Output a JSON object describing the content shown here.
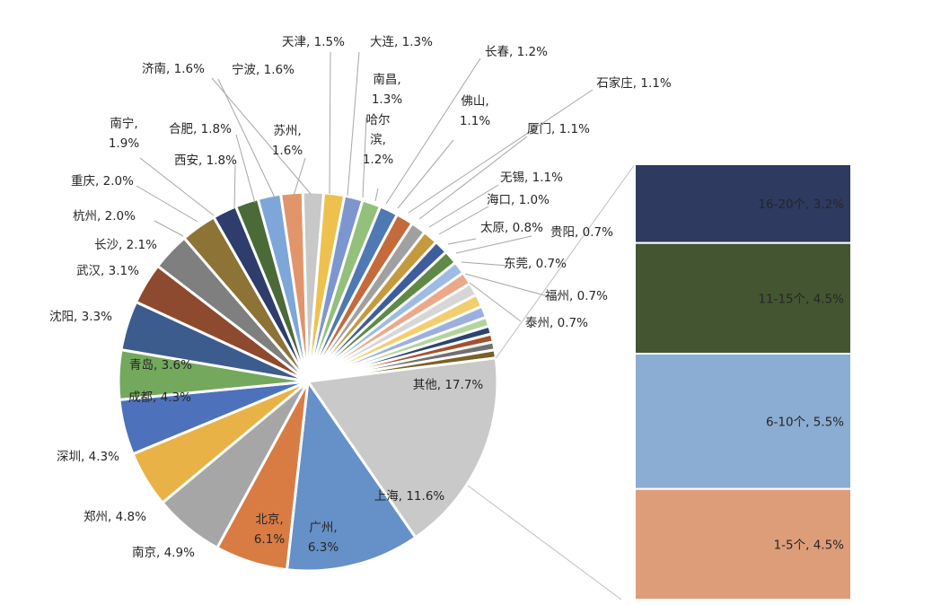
{
  "chart_data": [
    {
      "type": "pie",
      "title": "",
      "slices": [
        {
          "label": "上海",
          "value": 11.6,
          "color": "#6690c8"
        },
        {
          "label": "广州",
          "value": 6.3,
          "color": "#d97c43"
        },
        {
          "label": "北京",
          "value": 6.1,
          "color": "#a6a6a6"
        },
        {
          "label": "南京",
          "value": 4.9,
          "color": "#e8b247"
        },
        {
          "label": "郑州",
          "value": 4.8,
          "color": "#4e71bc"
        },
        {
          "label": "深圳",
          "value": 4.3,
          "color": "#74a85c"
        },
        {
          "label": "成都",
          "value": 4.3,
          "color": "#3c5c8e"
        },
        {
          "label": "青岛",
          "value": 3.6,
          "color": "#8e4a2e"
        },
        {
          "label": "沈阳",
          "value": 3.3,
          "color": "#7f7f7f"
        },
        {
          "label": "武汉",
          "value": 3.1,
          "color": "#8d7436"
        },
        {
          "label": "长沙",
          "value": 2.1,
          "color": "#2e3d6b"
        },
        {
          "label": "杭州",
          "value": 2.0,
          "color": "#4a6a38"
        },
        {
          "label": "重庆",
          "value": 2.0,
          "color": "#7ea6d8"
        },
        {
          "label": "南宁",
          "value": 1.9,
          "color": "#e2956b"
        },
        {
          "label": "西安",
          "value": 1.8,
          "color": "#c8c8c8"
        },
        {
          "label": "合肥",
          "value": 1.8,
          "color": "#eec14f"
        },
        {
          "label": "宁波",
          "value": 1.6,
          "color": "#7d96cf"
        },
        {
          "label": "苏州",
          "value": 1.6,
          "color": "#93c07a"
        },
        {
          "label": "济南",
          "value": 1.6,
          "color": "#4f79b5"
        },
        {
          "label": "天津",
          "value": 1.5,
          "color": "#c46a3b"
        },
        {
          "label": "大连",
          "value": 1.3,
          "color": "#a0a0a0"
        },
        {
          "label": "南昌",
          "value": 1.3,
          "color": "#c49a3c"
        },
        {
          "label": "哈尔滨",
          "value": 1.2,
          "color": "#3e5d9c"
        },
        {
          "label": "长春",
          "value": 1.2,
          "color": "#5e8a45"
        },
        {
          "label": "佛山",
          "value": 1.1,
          "color": "#9dbbe3"
        },
        {
          "label": "石家庄",
          "value": 1.1,
          "color": "#eba98a"
        },
        {
          "label": "厦门",
          "value": 1.1,
          "color": "#d6d6d6"
        },
        {
          "label": "无锡",
          "value": 1.1,
          "color": "#f3ce6d"
        },
        {
          "label": "海口",
          "value": 1.0,
          "color": "#9bb0de"
        },
        {
          "label": "太原",
          "value": 0.8,
          "color": "#b2d49e"
        },
        {
          "label": "贵阳",
          "value": 0.7,
          "color": "#2b4570"
        },
        {
          "label": "东莞",
          "value": 0.7,
          "color": "#a4512e"
        },
        {
          "label": "福州",
          "value": 0.7,
          "color": "#707070"
        },
        {
          "label": "泰州",
          "value": 0.7,
          "color": "#7a6125"
        },
        {
          "label": "其他",
          "value": 17.7,
          "color": "#c9c9c9"
        }
      ],
      "labels": [
        "上海, 11.6%",
        "广州,|6.3%",
        "北京,|6.1%",
        "南京, 4.9%",
        "郑州, 4.8%",
        "深圳, 4.3%",
        "成都, 4.3%",
        "青岛, 3.6%",
        "沈阳, 3.3%",
        "武汉, 3.1%",
        "长沙, 2.1%",
        "杭州, 2.0%",
        "重庆, 2.0%",
        "南宁,|1.9%",
        "西安, 1.8%",
        "合肥, 1.8%",
        "宁波, 1.6%",
        "苏州,|1.6%",
        "济南, 1.6%",
        "天津, 1.5%",
        "大连, 1.3%",
        "南昌,|1.3%",
        "哈尔|滨,|1.2%",
        "长春, 1.2%",
        "佛山,|1.1%",
        "石家庄, 1.1%",
        "厦门, 1.1%",
        "无锡, 1.1%",
        "海口, 1.0%",
        "太原, 0.8%",
        "贵阳, 0.7%",
        "东莞, 0.7%",
        "福州, 0.7%",
        "泰州, 0.7%",
        "其他, 17.7%"
      ]
    },
    {
      "type": "bar",
      "stacked": true,
      "title": "",
      "categories": [
        "16-20个",
        "11-15个",
        "6-10个",
        "1-5个"
      ],
      "values": [
        3.2,
        4.5,
        5.5,
        4.5
      ],
      "unit": "%",
      "colors": [
        "#2e3a5f",
        "#435631",
        "#8bacd3",
        "#de9d79"
      ],
      "labels": [
        "16-20个, 3.2%",
        "11-15个, 4.5%",
        "6-10个, 5.5%",
        "1-5个, 4.5%"
      ]
    }
  ]
}
